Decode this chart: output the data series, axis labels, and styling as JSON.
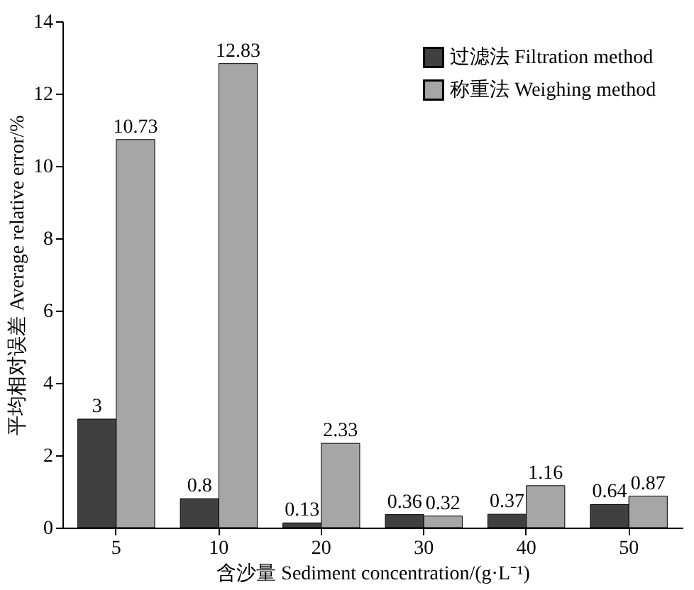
{
  "chart_data": {
    "type": "bar",
    "xlabel": "含沙量 Sediment concentration/(g·L⁻¹)",
    "ylabel": "平均相对误差 Average relative error/%",
    "categories": [
      "5",
      "10",
      "20",
      "30",
      "40",
      "50"
    ],
    "series": [
      {
        "name": "过滤法 Filtration method",
        "color": "#404040",
        "values": [
          3,
          0.8,
          0.13,
          0.36,
          0.37,
          0.64
        ]
      },
      {
        "name": "称重法 Weighing method",
        "color": "#a6a6a6",
        "values": [
          10.73,
          12.83,
          2.33,
          0.32,
          1.16,
          0.87
        ]
      }
    ],
    "ylim": [
      0,
      14
    ],
    "yticks": [
      0,
      2,
      4,
      6,
      8,
      10,
      12,
      14
    ],
    "data_labels": true,
    "legend": "top right",
    "grid": false
  }
}
